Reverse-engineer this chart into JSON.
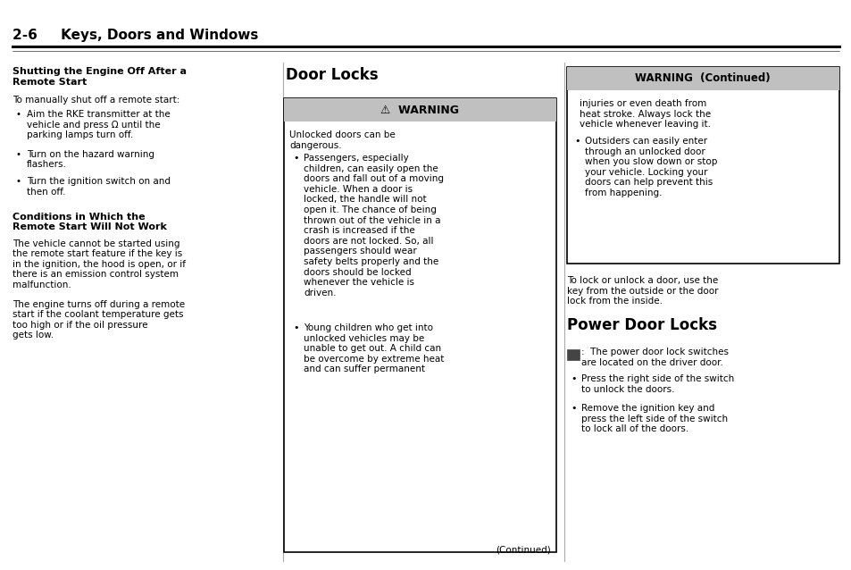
{
  "bg_color": "#ffffff",
  "header_title": "2-6     Keys, Doors and Windows",
  "col1_heading1": "Shutting the Engine Off After a\nRemote Start",
  "col1_para1": "To manually shut off a remote start:",
  "col1_bullets1": [
    "Aim the RKE transmitter at the\nvehicle and press Ω until the\nparking lamps turn off.",
    "Turn on the hazard warning\nflashers.",
    "Turn the ignition switch on and\nthen off."
  ],
  "col1_heading2": "Conditions in Which the\nRemote Start Will Not Work",
  "col1_para2": "The vehicle cannot be started using\nthe remote start feature if the key is\nin the ignition, the hood is open, or if\nthere is an emission control system\nmalfunction.",
  "col1_para3": "The engine turns off during a remote\nstart if the coolant temperature gets\ntoo high or if the oil pressure\ngets low.",
  "col2_heading": "Door Locks",
  "warning_bg": "#c0c0c0",
  "warning_title": "⚠  WARNING",
  "warning_text": "Unlocked doors can be\ndangerous.",
  "warning_bullet1": "Passengers, especially\nchildren, can easily open the\ndoors and fall out of a moving\nvehicle. When a door is\nlocked, the handle will not\nopen it. The chance of being\nthrown out of the vehicle in a\ncrash is increased if the\ndoors are not locked. So, all\npassengers should wear\nsafety belts properly and the\ndoors should be locked\nwhenever the vehicle is\ndriven.",
  "warning_bullet2": "Young children who get into\nunlocked vehicles may be\nunable to get out. A child can\nbe overcome by extreme heat\nand can suffer permanent",
  "continued_text": "(Continued)",
  "col3_warning_bg": "#c0c0c0",
  "col3_warning_title": "WARNING  (Continued)",
  "col3_warning_text1": "injuries or even death from\nheat stroke. Always lock the\nvehicle whenever leaving it.",
  "col3_warning_bullet": "Outsiders can easily enter\nthrough an unlocked door\nwhen you slow down or stop\nyour vehicle. Locking your\ndoors can help prevent this\nfrom happening.",
  "col3_para1": "To lock or unlock a door, use the\nkey from the outside or the door\nlock from the inside.",
  "col3_heading": "Power Door Locks",
  "col3_pdl_text": "⊞:  The power door lock switches\nare located on the driver door.",
  "col3_bullets": [
    "Press the right side of the switch\nto unlock the doors.",
    "Remove the ignition key and\npress the left side of the switch\nto lock all of the doors."
  ]
}
